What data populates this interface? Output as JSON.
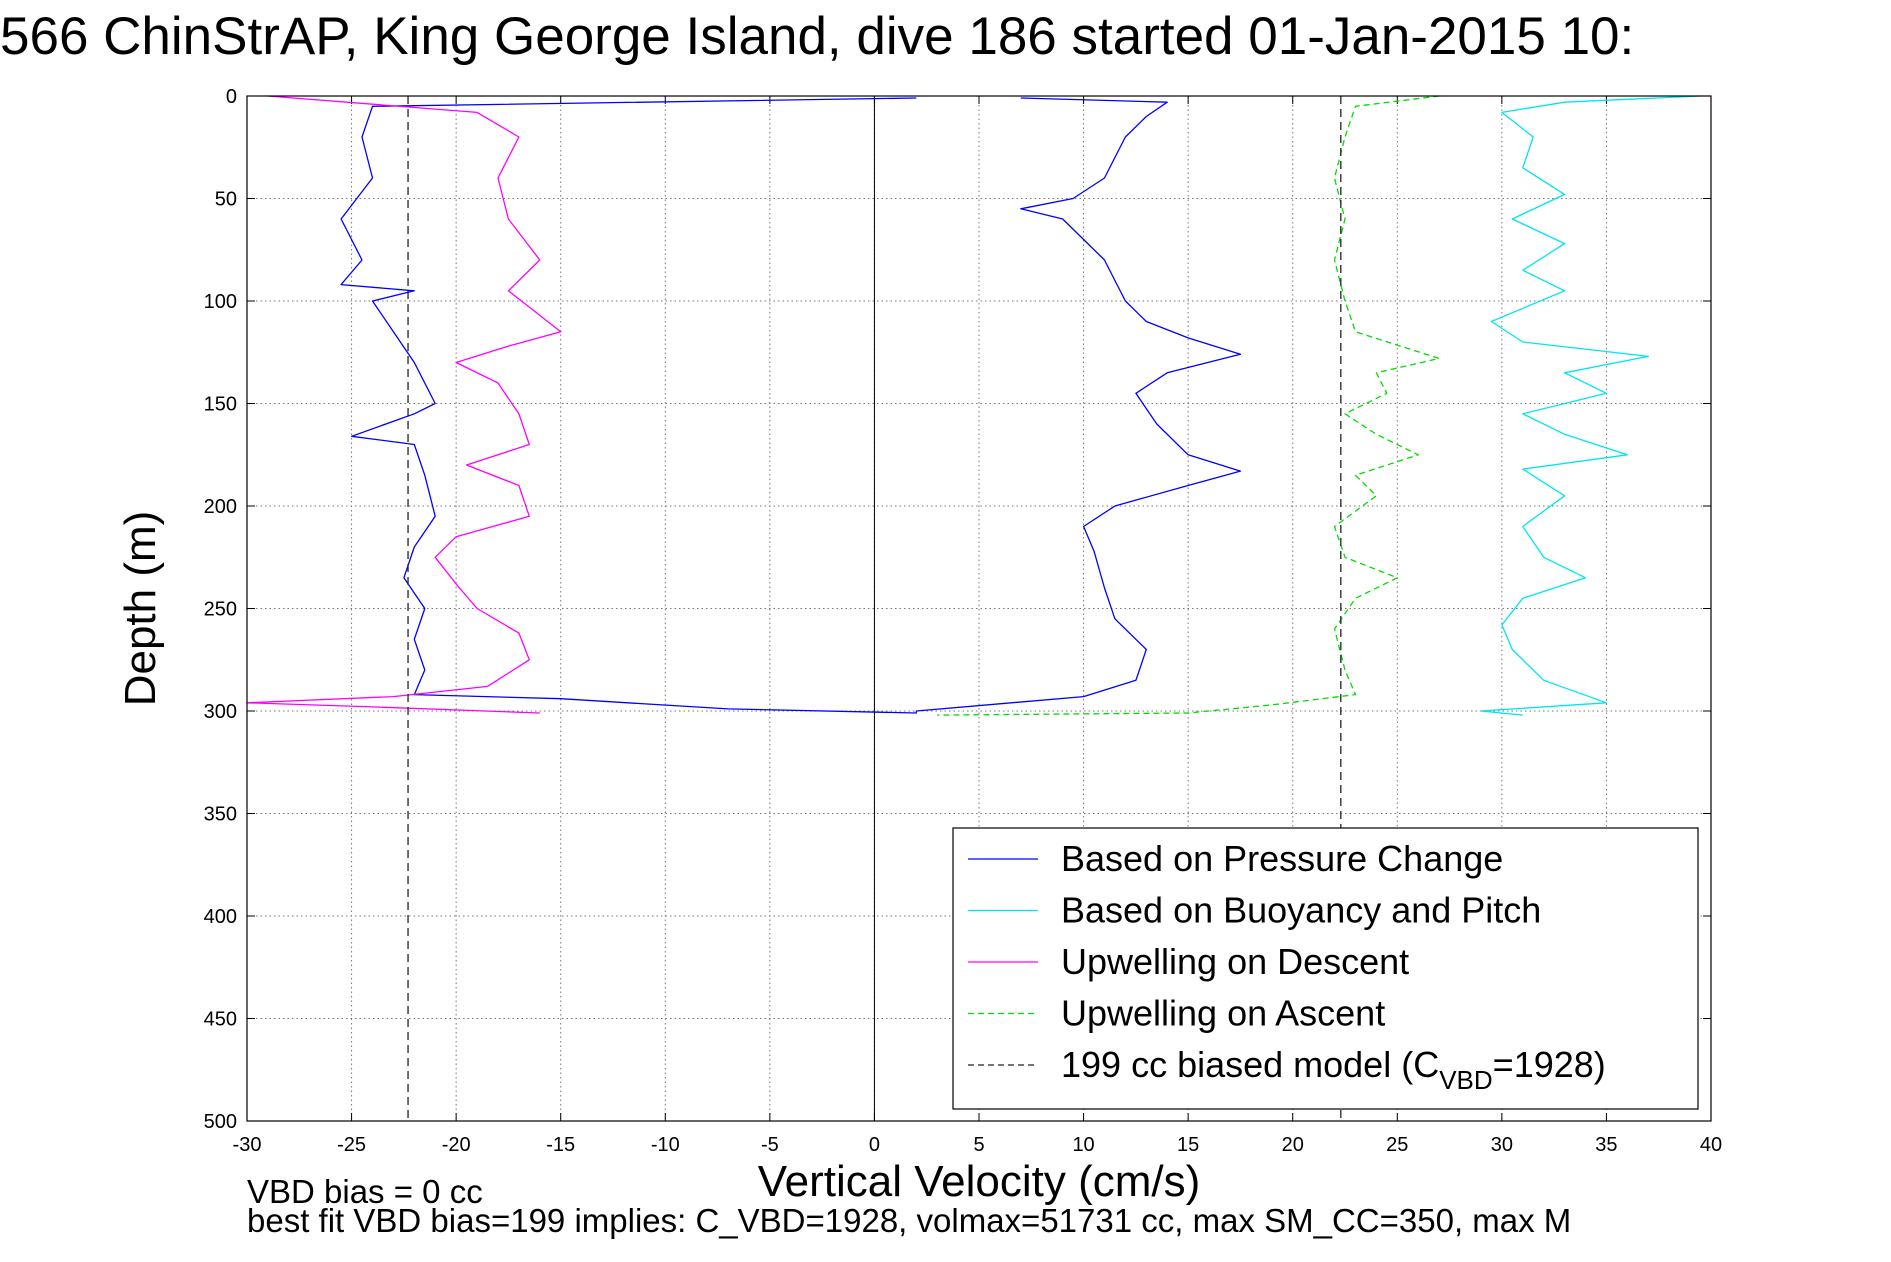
{
  "title": "566 ChinStrAP, King George Island, dive 186 started 01-Jan-2015 10:",
  "notes": {
    "vbd_bias": "VBD bias = 0 cc",
    "best_fit": "best fit VBD bias=199 implies: C_VBD=1928, volmax=51731 cc, max SM_CC=350, max M"
  },
  "chart_data": {
    "type": "line",
    "xlabel": "Vertical Velocity (cm/s)",
    "ylabel": "Depth (m)",
    "xlim": [
      -30,
      40
    ],
    "ylim": [
      0,
      500
    ],
    "y_reversed": true,
    "grid": true,
    "xticks": [
      -30,
      -25,
      -20,
      -15,
      -10,
      -5,
      0,
      5,
      10,
      15,
      20,
      25,
      30,
      35,
      40
    ],
    "yticks": [
      0,
      50,
      100,
      150,
      200,
      250,
      300,
      350,
      400,
      450,
      500
    ],
    "legend_position": "bottom-right",
    "series": [
      {
        "name": "Based on Pressure Change",
        "color": "#0000ff",
        "style": "solid",
        "points": [
          [
            2,
            1
          ],
          [
            -24,
            5
          ],
          [
            -24.5,
            20
          ],
          [
            -24,
            40
          ],
          [
            -25.5,
            60
          ],
          [
            -24.5,
            80
          ],
          [
            -25.5,
            92
          ],
          [
            -22,
            95
          ],
          [
            -24,
            100
          ],
          [
            -23,
            115
          ],
          [
            -22,
            130
          ],
          [
            -21,
            150
          ],
          [
            -22,
            155
          ],
          [
            -25,
            166
          ],
          [
            -22,
            170
          ],
          [
            -21.5,
            185
          ],
          [
            -21,
            205
          ],
          [
            -22,
            220
          ],
          [
            -22.5,
            235
          ],
          [
            -21.5,
            250
          ],
          [
            -22,
            265
          ],
          [
            -21.5,
            280
          ],
          [
            -22,
            292
          ],
          [
            -15,
            294
          ],
          [
            -7,
            299
          ],
          [
            2,
            301
          ],
          [
            2,
            300
          ],
          [
            10,
            293
          ],
          [
            12.5,
            285
          ],
          [
            13,
            270
          ],
          [
            11.5,
            255
          ],
          [
            11,
            240
          ],
          [
            10.5,
            222
          ],
          [
            10,
            210
          ],
          [
            11.5,
            200
          ],
          [
            15,
            190
          ],
          [
            17.5,
            183
          ],
          [
            15,
            175
          ],
          [
            13.5,
            160
          ],
          [
            12.5,
            145
          ],
          [
            14,
            135
          ],
          [
            17.5,
            126
          ],
          [
            15,
            118
          ],
          [
            13,
            110
          ],
          [
            12,
            100
          ],
          [
            11.5,
            90
          ],
          [
            11,
            80
          ],
          [
            10,
            70
          ],
          [
            9,
            60
          ],
          [
            7,
            55
          ],
          [
            9.5,
            50
          ],
          [
            11,
            40
          ],
          [
            11.5,
            30
          ],
          [
            12,
            20
          ],
          [
            13,
            10
          ],
          [
            14,
            3
          ],
          [
            7,
            1
          ]
        ]
      },
      {
        "name": "Based on Buoyancy and Pitch",
        "color": "#00e5ee",
        "style": "solid",
        "points": [
          [
            39.5,
            0
          ],
          [
            33,
            3
          ],
          [
            30,
            8
          ],
          [
            31.5,
            20
          ],
          [
            31,
            35
          ],
          [
            33,
            48
          ],
          [
            30.5,
            60
          ],
          [
            33,
            72
          ],
          [
            31,
            85
          ],
          [
            33,
            95
          ],
          [
            29.5,
            110
          ],
          [
            31,
            120
          ],
          [
            37,
            127
          ],
          [
            33,
            135
          ],
          [
            35,
            145
          ],
          [
            31,
            155
          ],
          [
            33,
            165
          ],
          [
            36,
            175
          ],
          [
            31,
            182
          ],
          [
            33,
            195
          ],
          [
            31,
            210
          ],
          [
            32,
            225
          ],
          [
            34,
            235
          ],
          [
            31,
            245
          ],
          [
            30,
            258
          ],
          [
            30.5,
            270
          ],
          [
            32,
            285
          ],
          [
            35,
            296
          ],
          [
            29,
            300
          ],
          [
            31,
            302
          ]
        ]
      },
      {
        "name": "Upwelling on Descent",
        "color": "#ff00ff",
        "style": "solid",
        "points": [
          [
            -29,
            0
          ],
          [
            -19,
            8
          ],
          [
            -17,
            20
          ],
          [
            -18,
            40
          ],
          [
            -17.5,
            60
          ],
          [
            -16,
            80
          ],
          [
            -17.5,
            95
          ],
          [
            -15,
            115
          ],
          [
            -17.5,
            122
          ],
          [
            -20,
            130
          ],
          [
            -18,
            140
          ],
          [
            -17,
            155
          ],
          [
            -16.5,
            170
          ],
          [
            -19.5,
            180
          ],
          [
            -17,
            190
          ],
          [
            -16.5,
            205
          ],
          [
            -20,
            215
          ],
          [
            -21,
            225
          ],
          [
            -20,
            238
          ],
          [
            -19,
            250
          ],
          [
            -17,
            262
          ],
          [
            -16.5,
            275
          ],
          [
            -18.5,
            288
          ],
          [
            -23,
            293
          ],
          [
            -30,
            296
          ],
          [
            -24,
            298
          ],
          [
            -16,
            301
          ]
        ]
      },
      {
        "name": "Upwelling on Ascent",
        "color": "#00dd00",
        "style": "dashed",
        "points": [
          [
            27,
            0
          ],
          [
            23,
            5
          ],
          [
            22.5,
            20
          ],
          [
            22,
            40
          ],
          [
            22.5,
            60
          ],
          [
            22,
            80
          ],
          [
            22.5,
            100
          ],
          [
            23,
            115
          ],
          [
            27,
            128
          ],
          [
            24,
            135
          ],
          [
            24.5,
            145
          ],
          [
            22.5,
            155
          ],
          [
            24,
            165
          ],
          [
            26,
            175
          ],
          [
            23,
            185
          ],
          [
            24,
            195
          ],
          [
            22,
            210
          ],
          [
            22.5,
            225
          ],
          [
            25,
            235
          ],
          [
            23,
            245
          ],
          [
            22,
            260
          ],
          [
            22.5,
            280
          ],
          [
            23,
            292
          ],
          [
            19,
            297
          ],
          [
            15,
            301
          ],
          [
            3,
            302
          ]
        ]
      },
      {
        "name": "199 cc biased model (C",
        "name_sub": "VBD",
        "name_tail": "=1928)",
        "color": "#222222",
        "style": "dashed",
        "vertical_lines_x": [
          -22.3,
          22.3
        ],
        "depth_range": [
          0,
          500
        ]
      }
    ]
  }
}
